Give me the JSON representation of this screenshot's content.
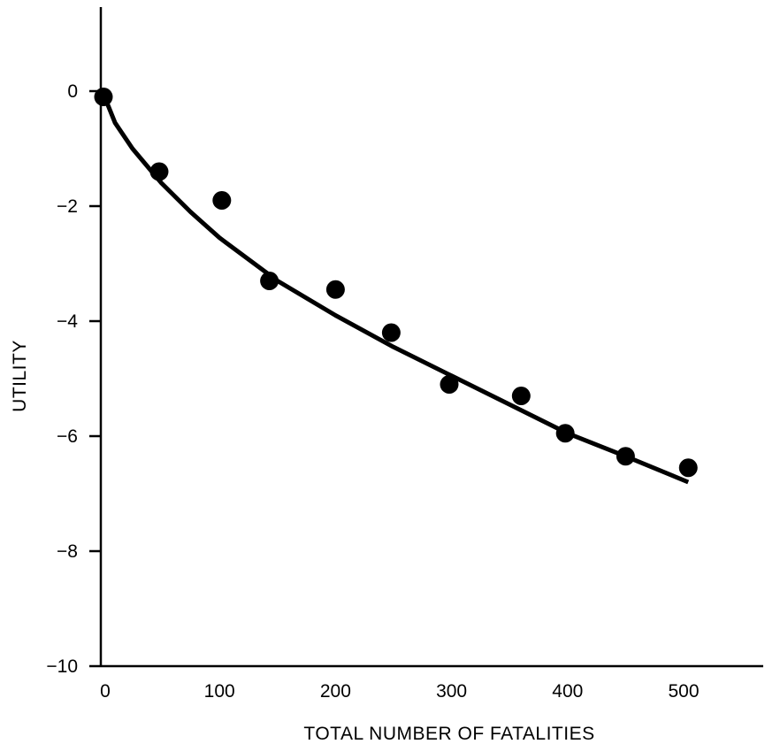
{
  "chart_data": {
    "type": "scatter",
    "title": "",
    "xlabel": "TOTAL NUMBER OF FATALITIES",
    "ylabel": "UTILITY",
    "xlim": [
      0,
      500
    ],
    "ylim": [
      -10,
      0
    ],
    "grid": false,
    "x_ticks": [
      {
        "value": 0,
        "label": "0"
      },
      {
        "value": 100,
        "label": "100"
      },
      {
        "value": 200,
        "label": "200"
      },
      {
        "value": 300,
        "label": "300"
      },
      {
        "value": 400,
        "label": "400"
      },
      {
        "value": 500,
        "label": "500"
      }
    ],
    "y_ticks": [
      {
        "value": 0,
        "label": "0"
      },
      {
        "value": -2,
        "label": "−2"
      },
      {
        "value": -4,
        "label": "−4"
      },
      {
        "value": -6,
        "label": "−6"
      },
      {
        "value": -8,
        "label": "−8"
      },
      {
        "value": -10,
        "label": "−10"
      }
    ],
    "points": [
      {
        "x": 0,
        "y": -0.1
      },
      {
        "x": 48,
        "y": -1.4
      },
      {
        "x": 102,
        "y": -1.9
      },
      {
        "x": 143,
        "y": -3.3
      },
      {
        "x": 200,
        "y": -3.45
      },
      {
        "x": 248,
        "y": -4.2
      },
      {
        "x": 298,
        "y": -5.1
      },
      {
        "x": 360,
        "y": -5.3
      },
      {
        "x": 398,
        "y": -5.95
      },
      {
        "x": 450,
        "y": -6.35
      },
      {
        "x": 504,
        "y": -6.55
      }
    ],
    "fit_curve": {
      "x": [
        0,
        10,
        25,
        50,
        75,
        100,
        150,
        200,
        250,
        300,
        350,
        400,
        450,
        504
      ],
      "y": [
        -0.05,
        -0.55,
        -1.0,
        -1.6,
        -2.1,
        -2.55,
        -3.3,
        -3.9,
        -4.45,
        -4.95,
        -5.45,
        -5.95,
        -6.35,
        -6.8
      ]
    },
    "colors": {
      "ink": "#000000",
      "background": "#ffffff"
    }
  }
}
